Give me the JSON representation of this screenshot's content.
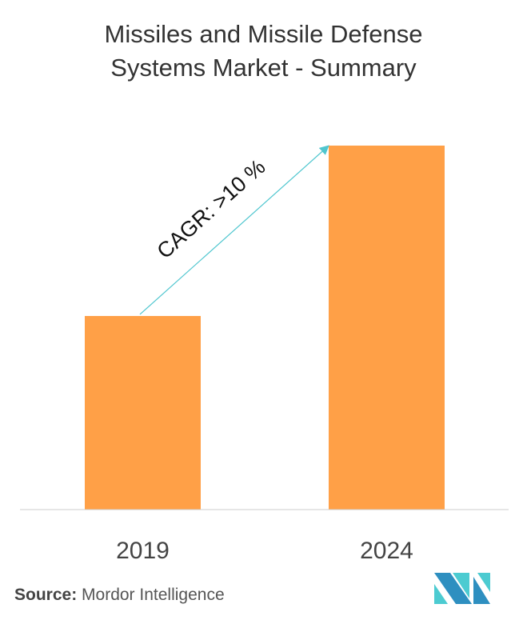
{
  "chart_data": {
    "type": "bar",
    "title_line1": "Missiles and Missile Defense",
    "title_line2": "Systems Market - Summary",
    "categories": [
      "2019",
      "2024"
    ],
    "values": [
      1.0,
      1.88
    ],
    "xlabel": "",
    "ylabel": "",
    "grid": false,
    "annotation": "CAGR: >10 %",
    "colors": {
      "bar": "#FFA047",
      "arrow": "#4FC6CF",
      "axis": "#CCCCCC"
    }
  },
  "source": {
    "label": "Source:",
    "value": "Mordor Intelligence"
  },
  "logo": {
    "name": "mordor-intelligence-logo",
    "colors": [
      "#2E8FC0",
      "#4CCBD1"
    ]
  }
}
